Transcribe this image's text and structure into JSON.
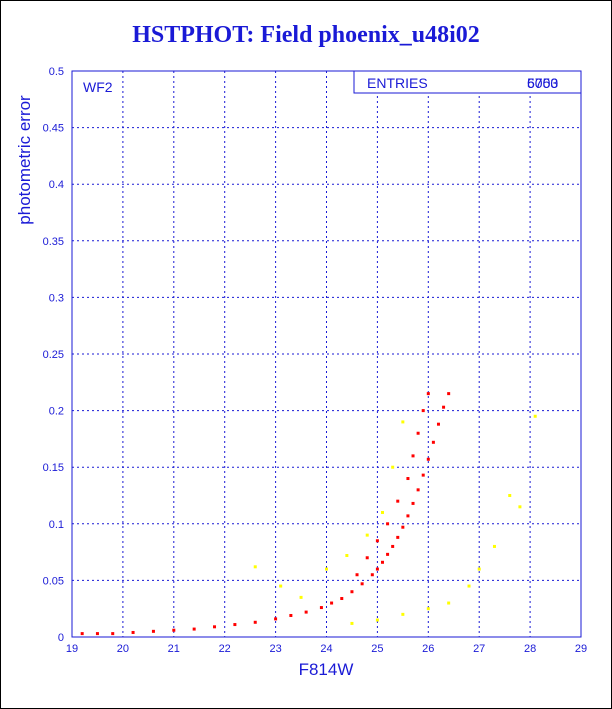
{
  "chart_data": {
    "type": "scatter",
    "title": "HSTPHOT: Field phoenix_u48i02",
    "xlabel": "F814W",
    "ylabel": "photometric error",
    "xlim": [
      19,
      29
    ],
    "ylim": [
      0,
      0.5
    ],
    "xticks": [
      "19",
      "20",
      "21",
      "22",
      "23",
      "24",
      "25",
      "26",
      "27",
      "28",
      "29"
    ],
    "yticks": [
      "0",
      "0.05",
      "0.1",
      "0.15",
      "0.2",
      "0.25",
      "0.3",
      "0.35",
      "0.4",
      "0.45",
      "0.5"
    ],
    "grid": true,
    "stats_box": {
      "label": "ENTRIES",
      "values": [
        "5700",
        "6053"
      ]
    },
    "annotation": "WF2",
    "colors": {
      "axis": "#1a1ad6",
      "series_main": "#ff0000",
      "series_secondary": "#ffff00"
    },
    "series": [
      {
        "color": "#ff0000",
        "points": [
          [
            19.2,
            0.003
          ],
          [
            19.5,
            0.003
          ],
          [
            19.8,
            0.003
          ],
          [
            20.2,
            0.004
          ],
          [
            20.6,
            0.005
          ],
          [
            21.0,
            0.006
          ],
          [
            21.4,
            0.007
          ],
          [
            21.8,
            0.009
          ],
          [
            22.2,
            0.011
          ],
          [
            22.6,
            0.013
          ],
          [
            23.0,
            0.016
          ],
          [
            23.3,
            0.019
          ],
          [
            23.6,
            0.022
          ],
          [
            23.9,
            0.026
          ],
          [
            24.1,
            0.03
          ],
          [
            24.3,
            0.034
          ],
          [
            24.5,
            0.04
          ],
          [
            24.7,
            0.047
          ],
          [
            24.9,
            0.055
          ],
          [
            25.0,
            0.06
          ],
          [
            25.1,
            0.066
          ],
          [
            25.2,
            0.073
          ],
          [
            25.3,
            0.08
          ],
          [
            25.4,
            0.088
          ],
          [
            25.5,
            0.097
          ],
          [
            25.6,
            0.107
          ],
          [
            25.7,
            0.118
          ],
          [
            25.8,
            0.13
          ],
          [
            25.9,
            0.143
          ],
          [
            26.0,
            0.157
          ],
          [
            26.1,
            0.172
          ],
          [
            26.2,
            0.188
          ],
          [
            26.3,
            0.203
          ],
          [
            26.4,
            0.215
          ],
          [
            24.6,
            0.055
          ],
          [
            24.8,
            0.07
          ],
          [
            25.0,
            0.085
          ],
          [
            25.2,
            0.1
          ],
          [
            25.4,
            0.12
          ],
          [
            25.6,
            0.14
          ],
          [
            25.7,
            0.16
          ],
          [
            25.8,
            0.18
          ],
          [
            25.9,
            0.2
          ],
          [
            26.0,
            0.215
          ]
        ]
      },
      {
        "color": "#ffff00",
        "points": [
          [
            22.6,
            0.062
          ],
          [
            23.1,
            0.045
          ],
          [
            23.5,
            0.035
          ],
          [
            24.0,
            0.06
          ],
          [
            24.4,
            0.072
          ],
          [
            24.8,
            0.09
          ],
          [
            25.1,
            0.11
          ],
          [
            25.3,
            0.15
          ],
          [
            25.5,
            0.19
          ],
          [
            24.5,
            0.012
          ],
          [
            25.0,
            0.015
          ],
          [
            25.5,
            0.02
          ],
          [
            26.0,
            0.025
          ],
          [
            26.4,
            0.03
          ],
          [
            26.8,
            0.045
          ],
          [
            27.0,
            0.06
          ],
          [
            27.3,
            0.08
          ],
          [
            27.6,
            0.125
          ],
          [
            27.8,
            0.115
          ],
          [
            28.1,
            0.195
          ]
        ]
      }
    ]
  }
}
